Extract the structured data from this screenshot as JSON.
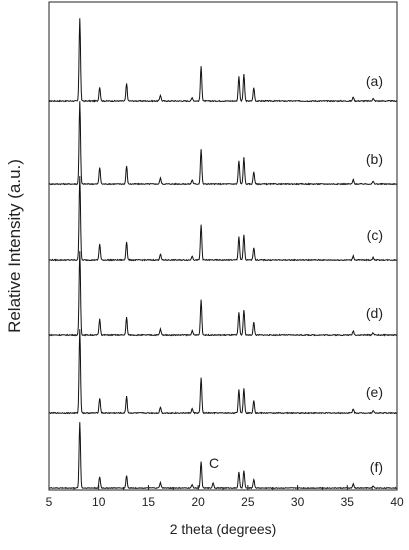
{
  "chart_data": {
    "type": "line",
    "xlabel": "2 theta (degrees)",
    "ylabel": "Relative Intensity (a.u.)",
    "xlim": [
      5,
      40
    ],
    "x_ticks": [
      5,
      10,
      15,
      20,
      25,
      30,
      35,
      40
    ],
    "grid": false,
    "legend": "none",
    "annotations": [
      {
        "text": "C",
        "x": 21.5,
        "series": "(f)"
      }
    ],
    "series": [
      {
        "name": "(a)",
        "peaks": [
          {
            "x": 8.1,
            "y": 1.0
          },
          {
            "x": 10.1,
            "y": 0.17
          },
          {
            "x": 12.8,
            "y": 0.21
          },
          {
            "x": 16.2,
            "y": 0.07
          },
          {
            "x": 19.4,
            "y": 0.04
          },
          {
            "x": 20.3,
            "y": 0.42
          },
          {
            "x": 24.1,
            "y": 0.3
          },
          {
            "x": 24.6,
            "y": 0.32
          },
          {
            "x": 25.6,
            "y": 0.16
          },
          {
            "x": 35.6,
            "y": 0.05
          },
          {
            "x": 37.6,
            "y": 0.03
          }
        ]
      },
      {
        "name": "(b)",
        "peaks": [
          {
            "x": 8.1,
            "y": 1.0
          },
          {
            "x": 10.1,
            "y": 0.2
          },
          {
            "x": 12.8,
            "y": 0.22
          },
          {
            "x": 16.2,
            "y": 0.07
          },
          {
            "x": 19.4,
            "y": 0.05
          },
          {
            "x": 20.3,
            "y": 0.42
          },
          {
            "x": 24.1,
            "y": 0.28
          },
          {
            "x": 24.6,
            "y": 0.32
          },
          {
            "x": 25.6,
            "y": 0.15
          },
          {
            "x": 35.6,
            "y": 0.05
          },
          {
            "x": 37.6,
            "y": 0.03
          }
        ]
      },
      {
        "name": "(c)",
        "peaks": [
          {
            "x": 8.1,
            "y": 1.0
          },
          {
            "x": 10.1,
            "y": 0.19
          },
          {
            "x": 12.8,
            "y": 0.22
          },
          {
            "x": 16.2,
            "y": 0.07
          },
          {
            "x": 19.4,
            "y": 0.05
          },
          {
            "x": 20.3,
            "y": 0.42
          },
          {
            "x": 24.1,
            "y": 0.28
          },
          {
            "x": 24.6,
            "y": 0.3
          },
          {
            "x": 25.6,
            "y": 0.15
          },
          {
            "x": 35.6,
            "y": 0.05
          },
          {
            "x": 37.6,
            "y": 0.03
          }
        ]
      },
      {
        "name": "(d)",
        "peaks": [
          {
            "x": 8.1,
            "y": 1.0
          },
          {
            "x": 10.1,
            "y": 0.19
          },
          {
            "x": 12.8,
            "y": 0.21
          },
          {
            "x": 16.2,
            "y": 0.07
          },
          {
            "x": 19.4,
            "y": 0.05
          },
          {
            "x": 20.3,
            "y": 0.42
          },
          {
            "x": 24.1,
            "y": 0.27
          },
          {
            "x": 24.6,
            "y": 0.3
          },
          {
            "x": 25.6,
            "y": 0.15
          },
          {
            "x": 35.6,
            "y": 0.05
          },
          {
            "x": 37.6,
            "y": 0.03
          }
        ]
      },
      {
        "name": "(e)",
        "peaks": [
          {
            "x": 8.1,
            "y": 1.0
          },
          {
            "x": 10.1,
            "y": 0.18
          },
          {
            "x": 12.8,
            "y": 0.2
          },
          {
            "x": 16.2,
            "y": 0.07
          },
          {
            "x": 19.4,
            "y": 0.05
          },
          {
            "x": 20.3,
            "y": 0.42
          },
          {
            "x": 24.1,
            "y": 0.28
          },
          {
            "x": 24.6,
            "y": 0.3
          },
          {
            "x": 25.6,
            "y": 0.15
          },
          {
            "x": 35.6,
            "y": 0.05
          },
          {
            "x": 37.6,
            "y": 0.03
          }
        ]
      },
      {
        "name": "(f)",
        "peaks": [
          {
            "x": 8.1,
            "y": 1.0
          },
          {
            "x": 10.1,
            "y": 0.17
          },
          {
            "x": 12.8,
            "y": 0.19
          },
          {
            "x": 16.2,
            "y": 0.08
          },
          {
            "x": 19.4,
            "y": 0.05
          },
          {
            "x": 20.3,
            "y": 0.4
          },
          {
            "x": 21.5,
            "y": 0.08
          },
          {
            "x": 24.1,
            "y": 0.24
          },
          {
            "x": 24.6,
            "y": 0.26
          },
          {
            "x": 25.6,
            "y": 0.13
          },
          {
            "x": 35.6,
            "y": 0.06
          },
          {
            "x": 37.6,
            "y": 0.03
          }
        ]
      }
    ]
  }
}
